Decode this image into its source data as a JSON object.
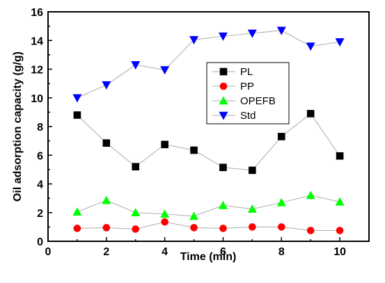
{
  "chart_data": {
    "type": "line",
    "xlabel": "Time (min)",
    "ylabel": "Oil adsorption capacity (g/g)",
    "xlim": [
      0,
      11
    ],
    "ylim": [
      0,
      16
    ],
    "xticks": [
      0,
      2,
      4,
      6,
      8,
      10
    ],
    "yticks": [
      0,
      2,
      4,
      6,
      8,
      10,
      12,
      14,
      16
    ],
    "grid": false,
    "legend_position": "center-right",
    "x": [
      1,
      2,
      3,
      4,
      5,
      6,
      7,
      8,
      9,
      10
    ],
    "series": [
      {
        "name": "PL",
        "marker": "square",
        "color": "#000000",
        "values": [
          8.8,
          6.85,
          5.2,
          6.75,
          6.35,
          5.15,
          4.95,
          7.3,
          8.9,
          5.95
        ]
      },
      {
        "name": "PP",
        "marker": "circle",
        "color": "#ff0000",
        "values": [
          0.9,
          0.95,
          0.85,
          1.35,
          0.95,
          0.9,
          1.0,
          1.0,
          0.75,
          0.75
        ]
      },
      {
        "name": "OPEFB",
        "marker": "triangle-up",
        "color": "#00ff00",
        "values": [
          2.05,
          2.85,
          2.0,
          1.9,
          1.75,
          2.5,
          2.25,
          2.7,
          3.2,
          2.75
        ]
      },
      {
        "name": "Std",
        "marker": "triangle-down",
        "color": "#0000ff",
        "values": [
          10.0,
          10.9,
          12.3,
          11.95,
          14.05,
          14.3,
          14.5,
          14.7,
          13.6,
          13.9
        ]
      }
    ],
    "line_color": "#aaaaaa"
  }
}
